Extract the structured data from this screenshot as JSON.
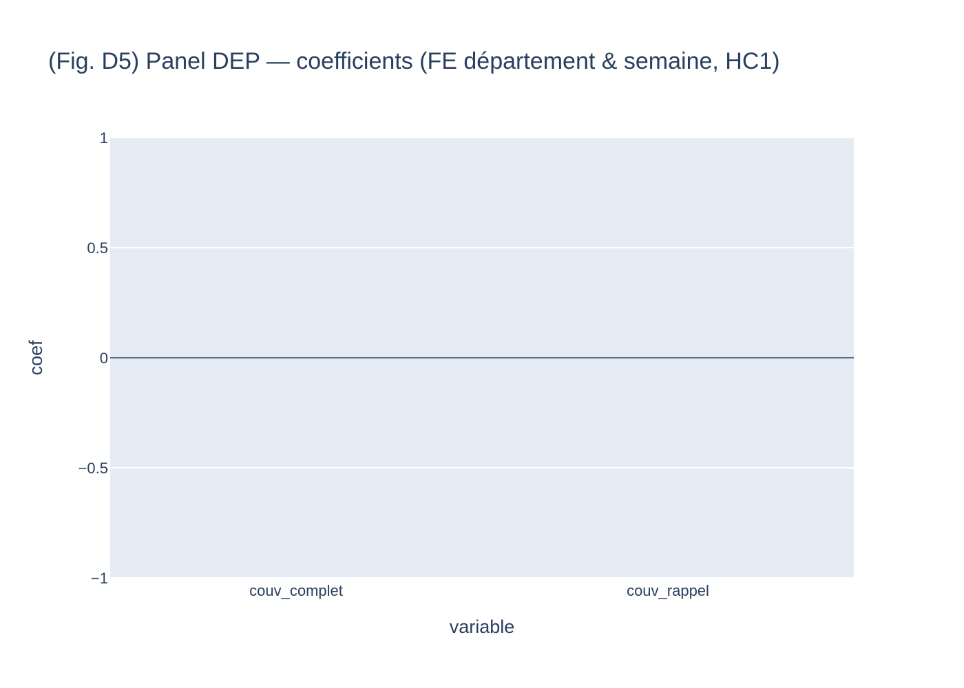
{
  "chart_data": {
    "type": "bar",
    "title": "(Fig. D5) Panel DEP — coefficients (FE département & semaine, HC1)",
    "xlabel": "variable",
    "ylabel": "coef",
    "categories": [
      "couv_complet",
      "couv_rappel"
    ],
    "values": [
      0,
      0
    ],
    "ylim": [
      -1,
      1
    ],
    "yticks": [
      1,
      0.5,
      0,
      -0.5,
      -1
    ],
    "ytick_labels": [
      "1",
      "0.5",
      "0",
      "−0.5",
      "−1"
    ],
    "grid": true,
    "legend": "none",
    "colors": {
      "plot_bg": "#e5ecf6",
      "grid": "#ffffff",
      "zeroline": "#2a3f5f",
      "text": "#2a3f5f"
    }
  }
}
